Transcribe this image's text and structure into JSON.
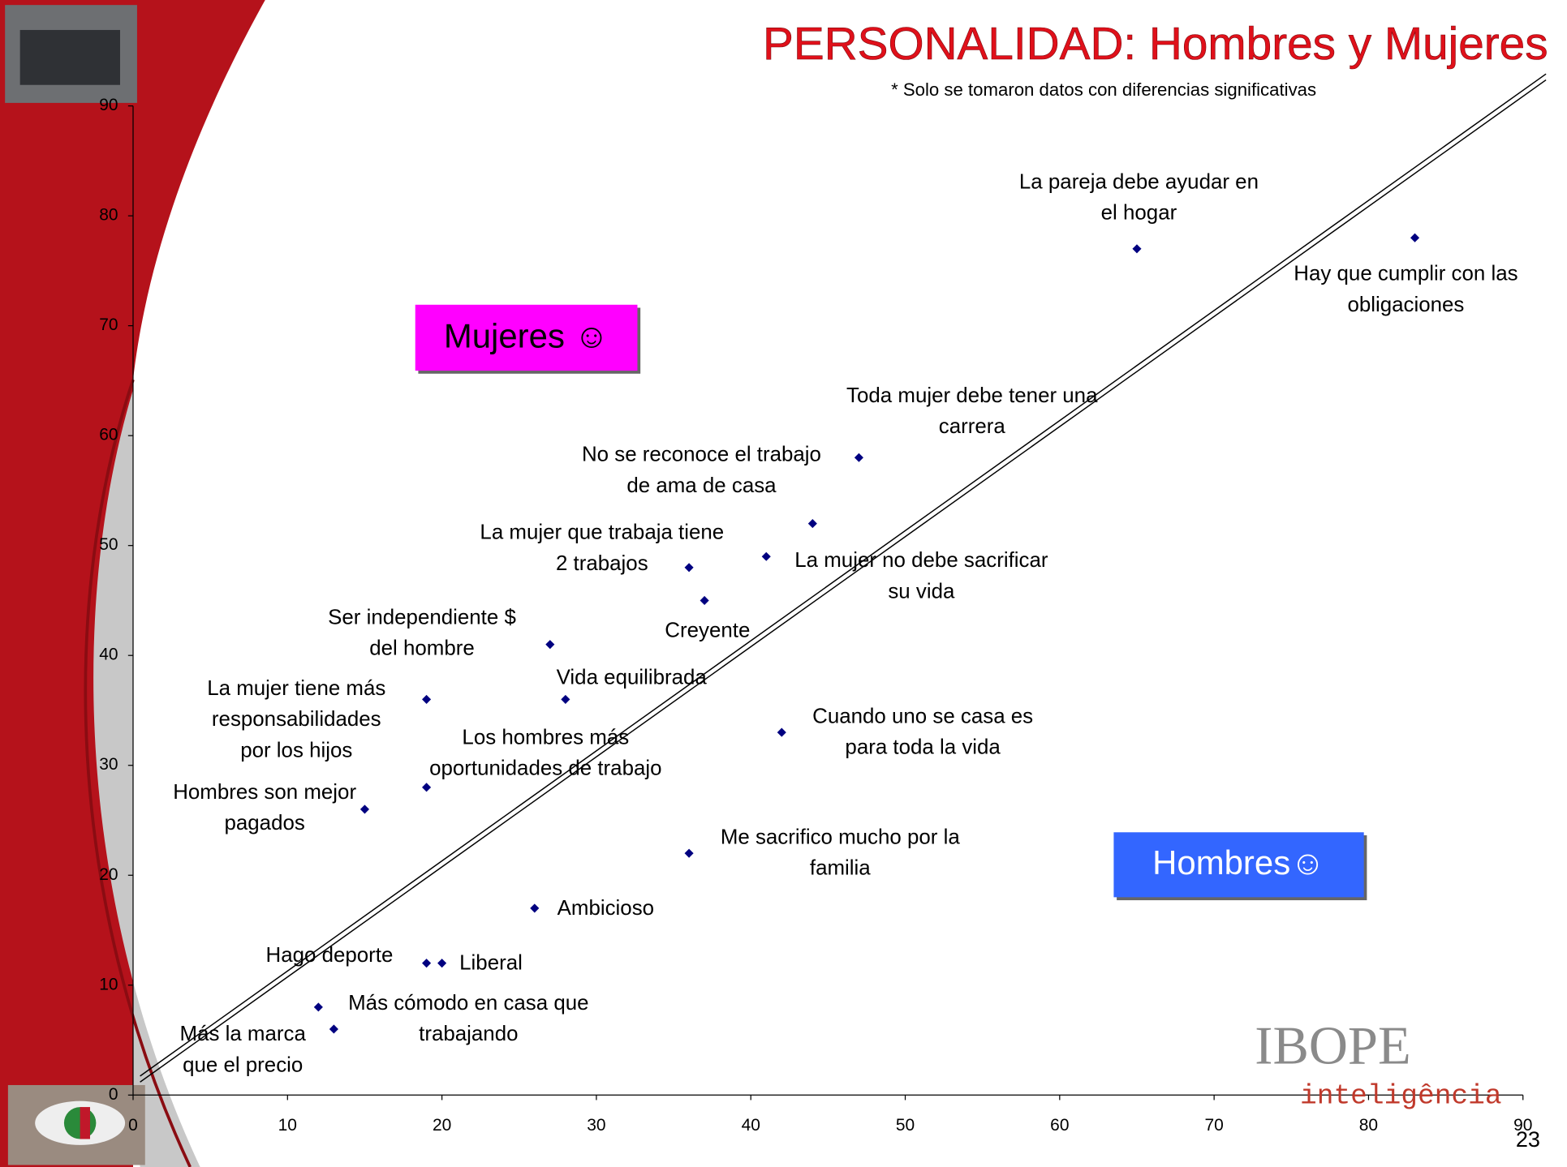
{
  "chart_data": {
    "type": "scatter",
    "title": "PERSONALIDAD: Hombres y Mujeres",
    "subtitle": "* Solo se tomaron datos con diferencias significativas",
    "xlim": [
      0,
      90
    ],
    "ylim": [
      0,
      90
    ],
    "xticks": [
      0,
      10,
      20,
      30,
      40,
      50,
      60,
      70,
      80,
      90
    ],
    "yticks": [
      0,
      10,
      20,
      30,
      40,
      50,
      60,
      70,
      80,
      90
    ],
    "annotations": [
      "Mujeres ☺",
      "Hombres☺"
    ],
    "series": [
      {
        "color": "#000080",
        "x": [
          65,
          83,
          47,
          44,
          41,
          36,
          37,
          27,
          28,
          19,
          42,
          19,
          15,
          36,
          26,
          19,
          20,
          12,
          13
        ],
        "values": [
          77,
          78,
          58,
          52,
          49,
          48,
          45,
          41,
          36,
          36,
          33,
          28,
          26,
          22,
          17,
          12,
          12,
          8,
          6
        ],
        "labels": [
          [
            "La pareja debe ayudar  en",
            "el hogar"
          ],
          [
            "Hay que cumplir con las",
            "obligaciones"
          ],
          [
            "Toda mujer debe tener una",
            "carrera"
          ],
          [
            "No se reconoce  el trabajo",
            "de ama de casa"
          ],
          [
            "La mujer no debe sacrificar",
            "su vida"
          ],
          [
            "La mujer que trabaja tiene",
            "2 trabajos"
          ],
          [
            "Creyente"
          ],
          [
            "Ser independiente $",
            "del hombre"
          ],
          [
            "Vida equilibrada"
          ],
          [
            "La mujer tiene más",
            "responsabilidades",
            "por los hijos"
          ],
          [
            "Cuando uno se casa es",
            "para toda la vida"
          ],
          [
            "Los hombres más",
            "oportunidades de trabajo"
          ],
          [
            "Hombres son mejor",
            "pagados"
          ],
          [
            "Me sacrifico mucho por la",
            "familia"
          ],
          [
            "Ambicioso"
          ],
          [
            "Hago deporte"
          ],
          [
            "Liberal"
          ],
          [
            "Más cómodo en casa que",
            "trabajando"
          ],
          [
            "Más la marca",
            "que el precio"
          ]
        ]
      }
    ]
  },
  "logo": {
    "name": "IBOPE",
    "sub": "inteligência"
  },
  "page_number": "23"
}
